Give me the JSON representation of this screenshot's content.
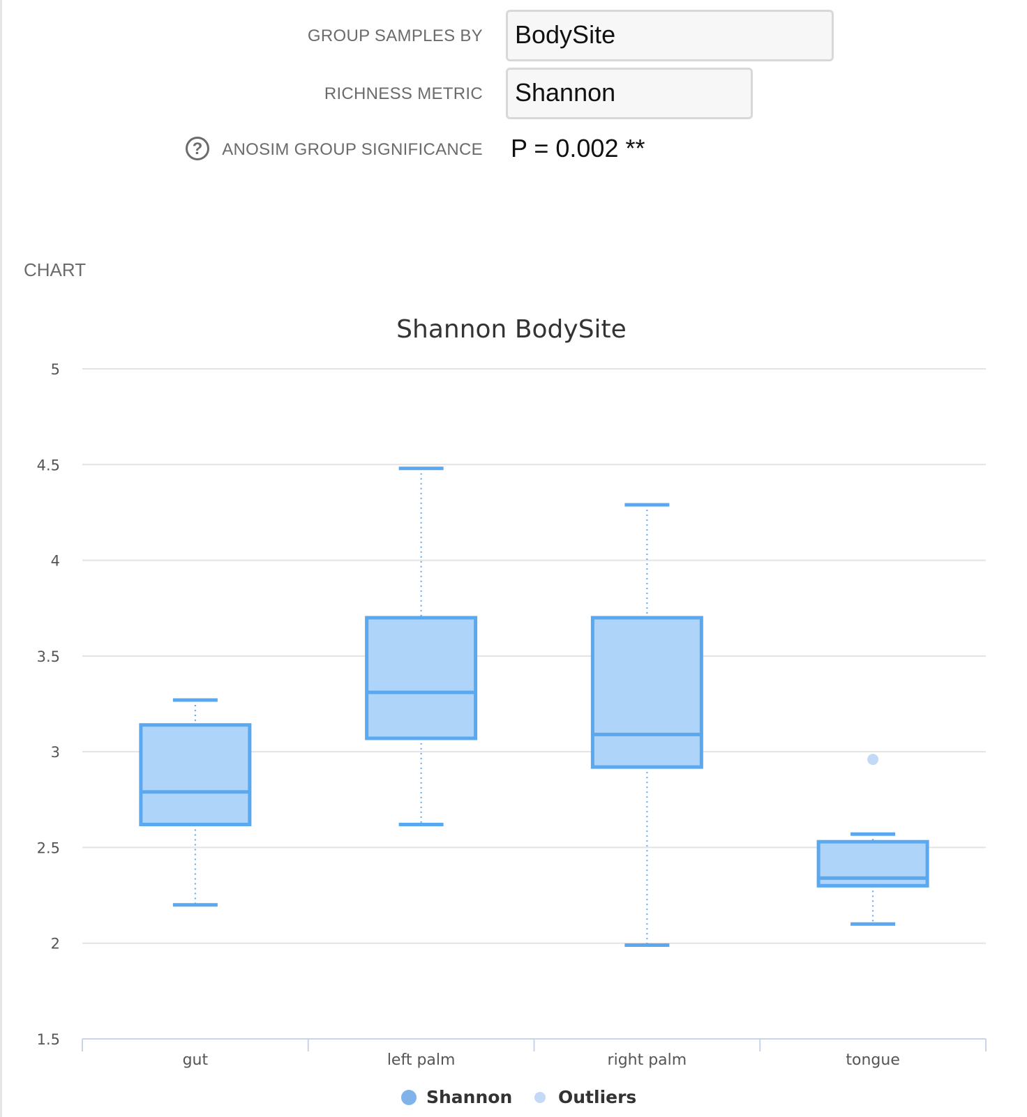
{
  "form": {
    "group_label": "GROUP SAMPLES BY",
    "group_value": "BodySite",
    "metric_label": "RICHNESS METRIC",
    "metric_value": "Shannon",
    "significance_label": "ANOSIM GROUP SIGNIFICANCE",
    "significance_value": "P = 0.002 **",
    "help_glyph": "?"
  },
  "section": {
    "chart_label": "CHART"
  },
  "colors": {
    "box_stroke": "#5aa8ef",
    "box_fill": "#aed4fa",
    "outlier": "#c4d8f7",
    "legend_series": "#7fb3ea",
    "grid": "#e3e3e3",
    "axis": "#c8d4e8"
  },
  "chart_data": {
    "type": "boxplot",
    "title": "Shannon BodySite",
    "categories": [
      "gut",
      "left palm",
      "right palm",
      "tongue"
    ],
    "ylim": [
      1.5,
      5
    ],
    "yticks": [
      "1.5",
      "2",
      "2.5",
      "3",
      "3.5",
      "4",
      "4.5",
      "5"
    ],
    "grid": true,
    "legend_position": "bottom-center",
    "series": [
      {
        "name": "Shannon",
        "boxes": [
          {
            "min": 2.2,
            "q1": 2.62,
            "median": 2.79,
            "q3": 3.14,
            "max": 3.27
          },
          {
            "min": 2.62,
            "q1": 3.07,
            "median": 3.31,
            "q3": 3.7,
            "max": 4.48
          },
          {
            "min": 1.99,
            "q1": 2.92,
            "median": 3.09,
            "q3": 3.7,
            "max": 4.29
          },
          {
            "min": 2.1,
            "q1": 2.3,
            "median": 2.34,
            "q3": 2.53,
            "max": 2.57
          }
        ]
      },
      {
        "name": "Outliers",
        "points": [
          {
            "category": "tongue",
            "y": 2.96
          }
        ]
      }
    ]
  }
}
